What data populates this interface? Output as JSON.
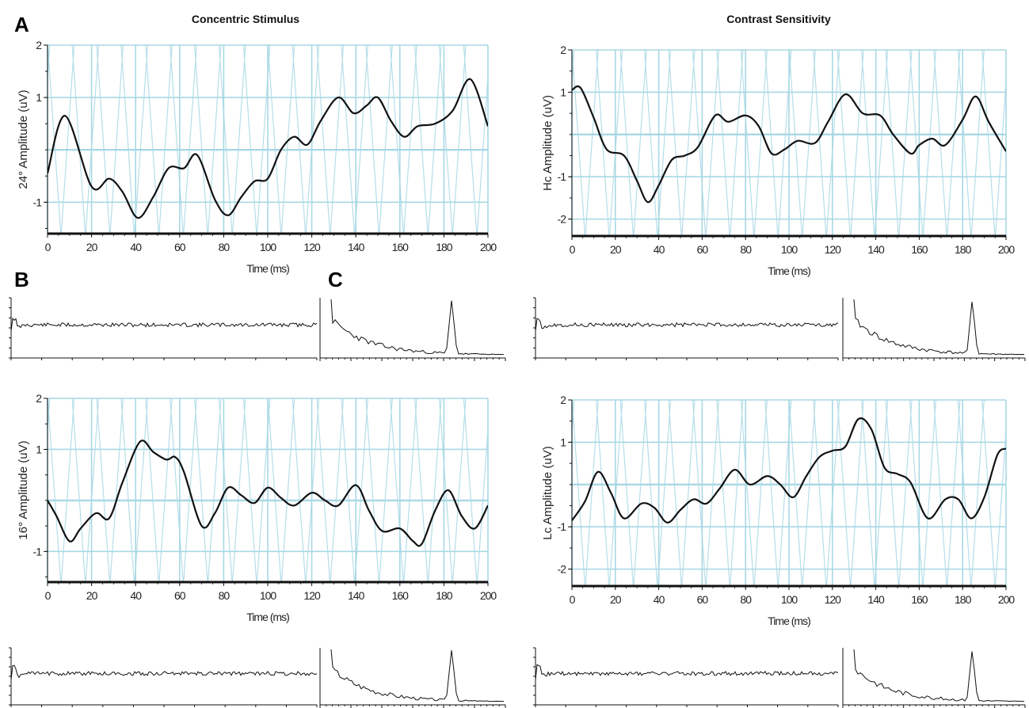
{
  "figure": {
    "column_titles": [
      "Concentric Stimulus",
      "Contrast Sensitivity"
    ],
    "panel_labels": [
      "A",
      "B",
      "C"
    ]
  },
  "colors": {
    "grid": "#a8d8e4",
    "trace": "#111111",
    "axis": "#111111"
  },
  "chart_data": [
    {
      "type": "line",
      "title": "",
      "ylabel": "24° Amplitude (uV)",
      "xlabel": "Time (ms)",
      "xlim": [
        0,
        200
      ],
      "ylim": [
        -1.6,
        2
      ],
      "xticks": [
        0,
        20,
        40,
        60,
        80,
        100,
        120,
        140,
        160,
        180,
        200
      ],
      "yticks": [
        -1,
        1,
        2
      ],
      "series": [
        {
          "x": [
            0,
            8,
            20,
            28,
            34,
            41,
            48,
            55,
            62,
            68,
            76,
            82,
            88,
            94,
            100,
            106,
            112,
            118,
            124,
            132,
            139,
            145,
            150,
            156,
            162,
            168,
            176,
            184,
            192,
            200
          ],
          "y": [
            -0.45,
            0.65,
            -0.7,
            -0.55,
            -0.8,
            -1.3,
            -0.9,
            -0.35,
            -0.35,
            -0.1,
            -0.95,
            -1.25,
            -0.9,
            -0.6,
            -0.55,
            0.0,
            0.25,
            0.1,
            0.55,
            1.0,
            0.7,
            0.85,
            1.0,
            0.55,
            0.25,
            0.45,
            0.5,
            0.75,
            1.35,
            0.45
          ]
        }
      ]
    },
    {
      "type": "line",
      "title": "",
      "ylabel": "Hc Amplitude (uV)",
      "xlabel": "Time (ms)",
      "xlim": [
        0,
        200
      ],
      "ylim": [
        -2.4,
        2
      ],
      "xticks": [
        0,
        20,
        40,
        60,
        80,
        100,
        120,
        140,
        160,
        180,
        200
      ],
      "yticks": [
        -2,
        -1,
        1,
        2
      ],
      "series": [
        {
          "x": [
            0,
            4,
            10,
            16,
            24,
            30,
            35,
            40,
            46,
            52,
            58,
            66,
            72,
            80,
            86,
            92,
            98,
            104,
            112,
            118,
            126,
            134,
            142,
            148,
            156,
            160,
            166,
            172,
            180,
            186,
            192,
            200
          ],
          "y": [
            1.05,
            1.1,
            0.4,
            -0.35,
            -0.5,
            -1.1,
            -1.6,
            -1.2,
            -0.6,
            -0.5,
            -0.3,
            0.45,
            0.3,
            0.45,
            0.2,
            -0.45,
            -0.35,
            -0.15,
            -0.2,
            0.3,
            0.95,
            0.5,
            0.45,
            0.0,
            -0.45,
            -0.25,
            -0.1,
            -0.25,
            0.35,
            0.9,
            0.3,
            -0.4
          ]
        }
      ]
    },
    {
      "type": "line",
      "title": "",
      "ylabel": "16° Amplitude (uV)",
      "xlabel": "Time (ms)",
      "xlim": [
        0,
        200
      ],
      "ylim": [
        -1.6,
        2
      ],
      "xticks": [
        0,
        20,
        40,
        60,
        80,
        100,
        120,
        140,
        160,
        180,
        200
      ],
      "yticks": [
        -1,
        1,
        2
      ],
      "series": [
        {
          "x": [
            0,
            4,
            10,
            15,
            22,
            28,
            34,
            42,
            48,
            54,
            58,
            62,
            70,
            76,
            82,
            88,
            94,
            100,
            106,
            112,
            120,
            126,
            132,
            140,
            146,
            152,
            160,
            166,
            170,
            176,
            182,
            188,
            194,
            200
          ],
          "y": [
            0.0,
            -0.3,
            -0.8,
            -0.55,
            -0.25,
            -0.35,
            0.35,
            1.15,
            0.95,
            0.8,
            0.85,
            0.55,
            -0.5,
            -0.25,
            0.25,
            0.1,
            -0.05,
            0.25,
            0.05,
            -0.1,
            0.15,
            0.0,
            -0.1,
            0.3,
            -0.2,
            -0.6,
            -0.55,
            -0.8,
            -0.85,
            -0.2,
            0.2,
            -0.3,
            -0.55,
            -0.1
          ]
        }
      ]
    },
    {
      "type": "line",
      "title": "",
      "ylabel": "Lc Amplitude (uV)",
      "xlabel": "Time (ms)",
      "xlim": [
        0,
        200
      ],
      "ylim": [
        -2.4,
        2
      ],
      "xticks": [
        0,
        20,
        40,
        60,
        80,
        100,
        120,
        140,
        160,
        180,
        200
      ],
      "yticks": [
        -2,
        -1,
        1,
        2
      ],
      "series": [
        {
          "x": [
            0,
            6,
            12,
            18,
            24,
            32,
            38,
            44,
            50,
            56,
            62,
            68,
            75,
            82,
            90,
            96,
            102,
            108,
            114,
            120,
            126,
            132,
            138,
            144,
            150,
            156,
            164,
            172,
            178,
            184,
            190,
            196,
            200
          ],
          "y": [
            -0.85,
            -0.4,
            0.3,
            -0.2,
            -0.8,
            -0.45,
            -0.55,
            -0.9,
            -0.6,
            -0.35,
            -0.45,
            -0.1,
            0.35,
            0.0,
            0.2,
            0.0,
            -0.3,
            0.2,
            0.65,
            0.8,
            0.9,
            1.55,
            1.3,
            0.4,
            0.25,
            0.05,
            -0.8,
            -0.35,
            -0.35,
            -0.8,
            -0.3,
            0.7,
            0.85
          ]
        }
      ]
    }
  ]
}
